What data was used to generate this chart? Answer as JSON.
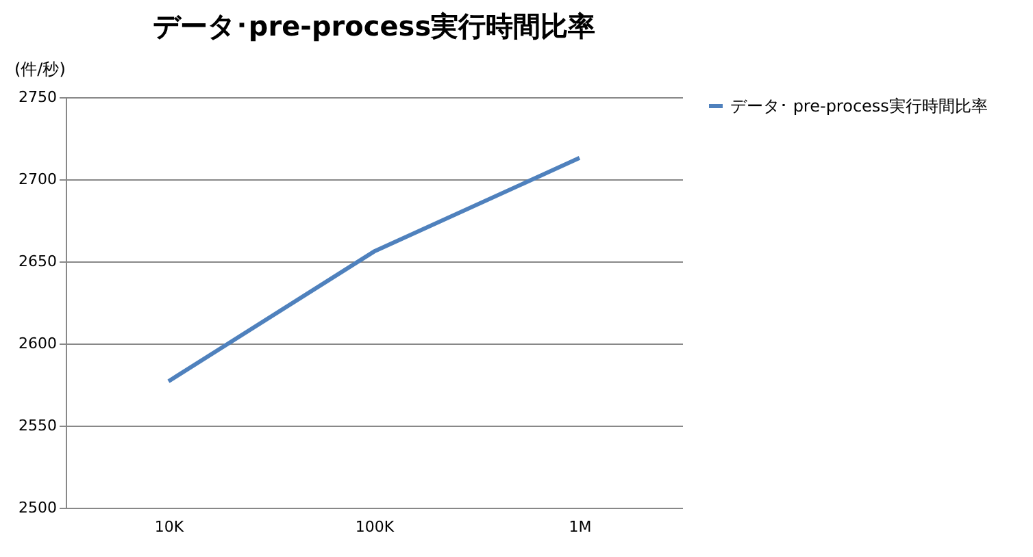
{
  "chart_data": {
    "type": "line",
    "title": "データ･pre-process実行時間比率",
    "ylabel": "(件/秒)",
    "categories": [
      "10K",
      "100K",
      "1M"
    ],
    "series": [
      {
        "name": "データ･ pre-process実行時間比率",
        "color": "#4f81bd",
        "values": [
          2577,
          2656,
          2713
        ]
      }
    ],
    "ylim": [
      2500,
      2750
    ],
    "yticks": [
      2500,
      2550,
      2600,
      2650,
      2700,
      2750
    ],
    "grid": "y",
    "legend": "right",
    "marker": "none",
    "line_style": "solid"
  }
}
